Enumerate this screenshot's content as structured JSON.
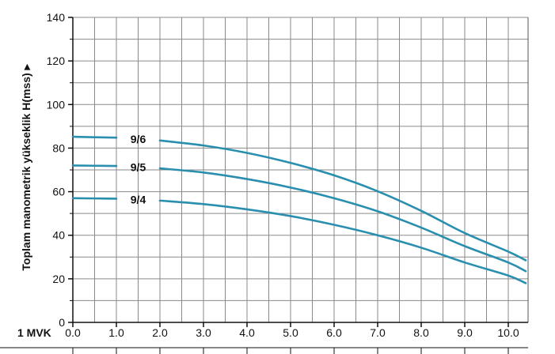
{
  "chart_data": {
    "type": "line",
    "ylabel": "Toplam manometrik yükseklik H(mss) ▸",
    "x_unit_label": "1 MVK",
    "xlim": [
      0,
      10.5
    ],
    "ylim": [
      0,
      140
    ],
    "x_ticks": [
      "0.0",
      "1.0",
      "2.0",
      "3.0",
      "4.0",
      "5.0",
      "6.0",
      "7.0",
      "8.0",
      "9.0",
      "10.0"
    ],
    "y_ticks": [
      "0",
      "20",
      "40",
      "60",
      "80",
      "100",
      "120",
      "140"
    ],
    "grid": true,
    "line_color": "#2a8fae",
    "series": [
      {
        "name": "9/6",
        "values": [
          [
            0,
            85.2
          ],
          [
            1.0,
            84.8
          ],
          [
            2.0,
            83.5
          ],
          [
            3.0,
            81.2
          ],
          [
            4.0,
            77.8
          ],
          [
            5.0,
            73.2
          ],
          [
            6.0,
            67.5
          ],
          [
            7.0,
            60.2
          ],
          [
            8.0,
            51.2
          ],
          [
            9.0,
            41.0
          ],
          [
            10.0,
            32.5
          ],
          [
            10.4,
            28.5
          ]
        ]
      },
      {
        "name": "9/5",
        "values": [
          [
            0,
            72.0
          ],
          [
            1.0,
            71.8
          ],
          [
            2.0,
            70.7
          ],
          [
            3.0,
            68.8
          ],
          [
            4.0,
            65.8
          ],
          [
            5.0,
            61.9
          ],
          [
            6.0,
            57.0
          ],
          [
            7.0,
            51.0
          ],
          [
            8.0,
            43.5
          ],
          [
            9.0,
            35.0
          ],
          [
            10.0,
            27.5
          ],
          [
            10.4,
            23.5
          ]
        ]
      },
      {
        "name": "9/4",
        "values": [
          [
            0,
            57.0
          ],
          [
            1.0,
            56.8
          ],
          [
            2.0,
            55.9
          ],
          [
            3.0,
            54.3
          ],
          [
            4.0,
            51.9
          ],
          [
            5.0,
            48.8
          ],
          [
            6.0,
            44.8
          ],
          [
            7.0,
            40.0
          ],
          [
            8.0,
            34.3
          ],
          [
            9.0,
            27.5
          ],
          [
            10.0,
            21.5
          ],
          [
            10.4,
            18.0
          ]
        ]
      }
    ]
  }
}
